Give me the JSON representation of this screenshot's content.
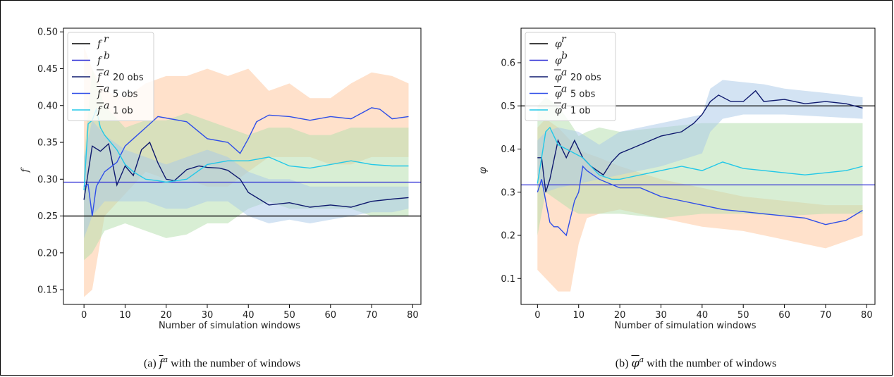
{
  "captions": [
    {
      "prefix": "(a) ",
      "symbol": "f",
      "sup": "a",
      "suffix": " with the number of windows"
    },
    {
      "prefix": "(b) ",
      "symbol": "φ",
      "sup": "a",
      "suffix": " with the number of windows"
    }
  ],
  "colors": {
    "reference": "#000000",
    "background": "#2a2ad4",
    "obs20": "#0f1a6e",
    "obs5": "#2f4ee8",
    "obs1": "#22c8e8",
    "band_orange": "#ffc8a0",
    "band_green": "#b8e0b0",
    "band_blue": "#a8c8e8"
  },
  "chart_data": [
    {
      "type": "line",
      "xlabel": "Number of simulation windows",
      "ylabel": "f",
      "xlim": [
        -5,
        82
      ],
      "ylim": [
        0.13,
        0.505
      ],
      "xticks": [
        0,
        10,
        20,
        30,
        40,
        50,
        60,
        70,
        80
      ],
      "yticks": [
        "0.15",
        "0.20",
        "0.25",
        "0.30",
        "0.35",
        "0.40",
        "0.45",
        "0.50"
      ],
      "legend_position": "upper-left",
      "legend": [
        {
          "sym": "f",
          "sup": "r",
          "text": ""
        },
        {
          "sym": "f",
          "sup": "b",
          "text": ""
        },
        {
          "sym": "f",
          "sup": "a",
          "text": "20 obs",
          "bar": true
        },
        {
          "sym": "f",
          "sup": "a",
          "text": "5 obs",
          "bar": true
        },
        {
          "sym": "f",
          "sup": "a",
          "text": "1 ob",
          "bar": true
        }
      ],
      "hlines": [
        {
          "name": "reference",
          "y": 0.25
        },
        {
          "name": "background",
          "y": 0.296
        }
      ],
      "series": [
        {
          "name": "20 obs",
          "key": "obs20",
          "x": [
            0,
            2,
            4,
            6,
            8,
            10,
            12,
            14,
            16,
            18,
            20,
            22,
            25,
            28,
            30,
            33,
            35,
            38,
            40,
            45,
            50,
            55,
            60,
            65,
            70,
            75,
            79
          ],
          "y": [
            0.272,
            0.345,
            0.338,
            0.348,
            0.292,
            0.318,
            0.305,
            0.34,
            0.35,
            0.322,
            0.3,
            0.298,
            0.313,
            0.318,
            0.316,
            0.315,
            0.312,
            0.3,
            0.282,
            0.265,
            0.268,
            0.262,
            0.265,
            0.262,
            0.27,
            0.273,
            0.275
          ]
        },
        {
          "name": "5 obs",
          "key": "obs5",
          "x": [
            0,
            1,
            2,
            3,
            5,
            8,
            10,
            12,
            15,
            18,
            20,
            25,
            30,
            35,
            38,
            40,
            42,
            45,
            50,
            55,
            60,
            65,
            70,
            72,
            75,
            79
          ],
          "y": [
            0.29,
            0.293,
            0.25,
            0.29,
            0.31,
            0.323,
            0.345,
            0.355,
            0.37,
            0.385,
            0.383,
            0.378,
            0.355,
            0.35,
            0.335,
            0.355,
            0.378,
            0.387,
            0.385,
            0.38,
            0.385,
            0.382,
            0.397,
            0.395,
            0.382,
            0.385
          ]
        },
        {
          "name": "1 ob",
          "key": "obs1",
          "x": [
            0,
            1,
            2,
            3,
            4,
            5,
            8,
            10,
            12,
            15,
            18,
            20,
            25,
            30,
            35,
            40,
            45,
            50,
            55,
            60,
            65,
            70,
            75,
            79
          ],
          "y": [
            0.285,
            0.375,
            0.38,
            0.395,
            0.37,
            0.36,
            0.34,
            0.32,
            0.31,
            0.3,
            0.298,
            0.296,
            0.3,
            0.32,
            0.325,
            0.325,
            0.33,
            0.318,
            0.315,
            0.32,
            0.325,
            0.32,
            0.318,
            0.318
          ]
        }
      ],
      "bands": [
        {
          "name": "band-orange",
          "key": "band_orange",
          "opacity": 0.55,
          "x": [
            0,
            2,
            5,
            10,
            15,
            20,
            25,
            30,
            35,
            40,
            45,
            50,
            55,
            60,
            65,
            70,
            75,
            79
          ],
          "upper": [
            0.48,
            0.45,
            0.42,
            0.41,
            0.43,
            0.44,
            0.44,
            0.45,
            0.44,
            0.45,
            0.42,
            0.43,
            0.41,
            0.41,
            0.43,
            0.445,
            0.44,
            0.43
          ],
          "lower": [
            0.14,
            0.15,
            0.25,
            0.28,
            0.31,
            0.3,
            0.3,
            0.29,
            0.29,
            0.31,
            0.33,
            0.33,
            0.33,
            0.32,
            0.32,
            0.33,
            0.33,
            0.33
          ]
        },
        {
          "name": "band-green",
          "key": "band_green",
          "opacity": 0.55,
          "x": [
            0,
            2,
            5,
            10,
            15,
            20,
            25,
            30,
            35,
            40,
            45,
            50,
            55,
            60,
            65,
            70,
            75,
            79
          ],
          "upper": [
            0.33,
            0.45,
            0.4,
            0.37,
            0.38,
            0.38,
            0.39,
            0.38,
            0.37,
            0.36,
            0.37,
            0.37,
            0.36,
            0.36,
            0.37,
            0.37,
            0.37,
            0.37
          ],
          "lower": [
            0.19,
            0.2,
            0.23,
            0.24,
            0.23,
            0.22,
            0.225,
            0.24,
            0.24,
            0.26,
            0.27,
            0.26,
            0.26,
            0.26,
            0.26,
            0.25,
            0.25,
            0.25
          ]
        },
        {
          "name": "band-blue",
          "key": "band_blue",
          "opacity": 0.5,
          "x": [
            0,
            2,
            5,
            10,
            15,
            20,
            25,
            30,
            35,
            40,
            45,
            50,
            55,
            60,
            65,
            70,
            75,
            79
          ],
          "upper": [
            0.33,
            0.38,
            0.36,
            0.34,
            0.33,
            0.32,
            0.33,
            0.34,
            0.33,
            0.31,
            0.3,
            0.3,
            0.29,
            0.29,
            0.29,
            0.29,
            0.29,
            0.29
          ],
          "lower": [
            0.22,
            0.25,
            0.27,
            0.27,
            0.27,
            0.26,
            0.26,
            0.27,
            0.27,
            0.25,
            0.24,
            0.245,
            0.24,
            0.245,
            0.25,
            0.255,
            0.255,
            0.26
          ]
        }
      ]
    },
    {
      "type": "line",
      "xlabel": "Number of simulation windows",
      "ylabel": "φ",
      "xlim": [
        -4,
        82
      ],
      "ylim": [
        0.04,
        0.68
      ],
      "xticks": [
        0,
        10,
        20,
        30,
        40,
        50,
        60,
        70,
        80
      ],
      "yticks": [
        "0.1",
        "0.2",
        "0.3",
        "0.4",
        "0.5",
        "0.6"
      ],
      "legend_position": "upper-left",
      "legend": [
        {
          "sym": "φ",
          "sup": "r",
          "text": ""
        },
        {
          "sym": "φ",
          "sup": "b",
          "text": ""
        },
        {
          "sym": "φ",
          "sup": "a",
          "text": "20 obs",
          "bar": true
        },
        {
          "sym": "φ",
          "sup": "a",
          "text": "5 obs",
          "bar": true
        },
        {
          "sym": "φ",
          "sup": "a",
          "text": "1 ob",
          "bar": true
        }
      ],
      "hlines": [
        {
          "name": "reference",
          "y": 0.5
        },
        {
          "name": "background",
          "y": 0.317
        }
      ],
      "series": [
        {
          "name": "20 obs",
          "key": "obs20",
          "x": [
            0,
            1,
            2,
            3,
            5,
            7,
            9,
            11,
            13,
            16,
            18,
            20,
            25,
            30,
            35,
            38,
            40,
            42,
            44,
            47,
            50,
            53,
            55,
            60,
            65,
            70,
            75,
            79
          ],
          "y": [
            0.38,
            0.38,
            0.3,
            0.33,
            0.42,
            0.38,
            0.42,
            0.38,
            0.36,
            0.34,
            0.37,
            0.39,
            0.41,
            0.43,
            0.44,
            0.46,
            0.48,
            0.51,
            0.525,
            0.51,
            0.51,
            0.535,
            0.51,
            0.515,
            0.505,
            0.51,
            0.505,
            0.495
          ]
        },
        {
          "name": "5 obs",
          "key": "obs5",
          "x": [
            0,
            1,
            2,
            3,
            4,
            5,
            7,
            9,
            10,
            11,
            12,
            15,
            20,
            25,
            30,
            35,
            40,
            45,
            50,
            55,
            60,
            65,
            70,
            75,
            79
          ],
          "y": [
            0.3,
            0.33,
            0.28,
            0.23,
            0.22,
            0.22,
            0.2,
            0.28,
            0.3,
            0.36,
            0.35,
            0.33,
            0.31,
            0.31,
            0.29,
            0.28,
            0.27,
            0.26,
            0.255,
            0.25,
            0.245,
            0.24,
            0.225,
            0.235,
            0.258
          ]
        },
        {
          "name": "1 ob",
          "key": "obs1",
          "x": [
            0,
            1,
            2,
            3,
            4,
            5,
            7,
            9,
            11,
            13,
            15,
            18,
            20,
            25,
            30,
            35,
            40,
            45,
            50,
            55,
            60,
            65,
            70,
            75,
            79
          ],
          "y": [
            0.32,
            0.38,
            0.44,
            0.45,
            0.43,
            0.41,
            0.4,
            0.39,
            0.38,
            0.36,
            0.34,
            0.33,
            0.33,
            0.34,
            0.35,
            0.36,
            0.35,
            0.37,
            0.355,
            0.35,
            0.345,
            0.34,
            0.345,
            0.35,
            0.36
          ]
        }
      ],
      "bands": [
        {
          "name": "band-orange",
          "key": "band_orange",
          "opacity": 0.55,
          "x": [
            0,
            2,
            5,
            8,
            10,
            12,
            15,
            20,
            30,
            40,
            50,
            60,
            70,
            79
          ],
          "upper": [
            0.45,
            0.47,
            0.45,
            0.42,
            0.4,
            0.39,
            0.38,
            0.36,
            0.33,
            0.31,
            0.29,
            0.28,
            0.27,
            0.27
          ],
          "lower": [
            0.12,
            0.1,
            0.07,
            0.07,
            0.18,
            0.24,
            0.25,
            0.26,
            0.24,
            0.22,
            0.21,
            0.19,
            0.17,
            0.2
          ]
        },
        {
          "name": "band-green",
          "key": "band_green",
          "opacity": 0.55,
          "x": [
            0,
            2,
            5,
            8,
            10,
            12,
            15,
            20,
            30,
            40,
            50,
            60,
            70,
            79
          ],
          "upper": [
            0.5,
            0.52,
            0.5,
            0.46,
            0.43,
            0.44,
            0.45,
            0.44,
            0.45,
            0.46,
            0.46,
            0.46,
            0.46,
            0.46
          ],
          "lower": [
            0.2,
            0.3,
            0.28,
            0.26,
            0.25,
            0.25,
            0.25,
            0.25,
            0.24,
            0.25,
            0.25,
            0.245,
            0.25,
            0.25
          ]
        },
        {
          "name": "band-blue",
          "key": "band_blue",
          "opacity": 0.5,
          "x": [
            0,
            2,
            5,
            10,
            15,
            20,
            30,
            40,
            42,
            45,
            50,
            55,
            60,
            70,
            79
          ],
          "upper": [
            0.42,
            0.44,
            0.45,
            0.44,
            0.41,
            0.44,
            0.46,
            0.48,
            0.54,
            0.56,
            0.555,
            0.55,
            0.54,
            0.53,
            0.52
          ],
          "lower": [
            0.34,
            0.3,
            0.31,
            0.32,
            0.33,
            0.34,
            0.36,
            0.39,
            0.44,
            0.47,
            0.48,
            0.48,
            0.48,
            0.475,
            0.47
          ]
        }
      ]
    }
  ]
}
